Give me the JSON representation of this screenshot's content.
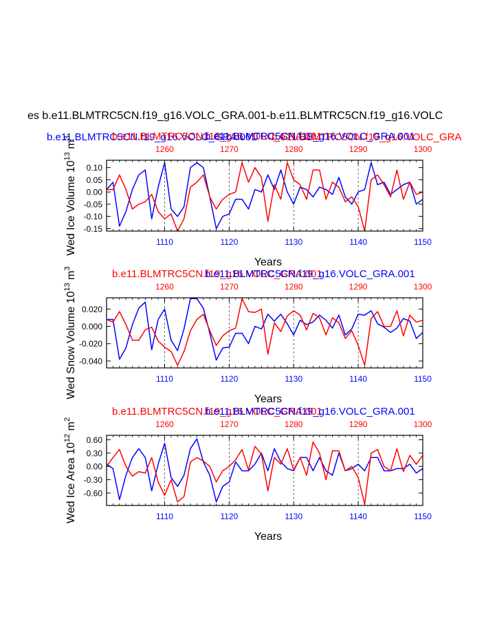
{
  "figure": {
    "main_title": "es b.e11.BLMTRC5CN.f19_g16.VOLC_GRA.001-b.e11.BLMTRC5CN.f19_g16.VOLC",
    "overlap_title_blue": "b.e11.BLMTRC5CN.f19_g16.VOLC_GRA.001",
    "overlap_title_red": "b.e11.BLMTRC5CN.f19_g16.VOLC_GRA",
    "colors": {
      "series_a": "#0000ff",
      "series_b": "#ff0000",
      "axis": "#000000"
    }
  },
  "chart_data": [
    {
      "type": "line",
      "id": "ice-volume",
      "title_red": "b.e11.BLMTRC5CN.f19_g16.VOLC_GRA.001",
      "title_blue": "b.e11.BLMTRC5CN.f19_g16.VOLC_GRA.001",
      "ylabel": "Wed Ice Volume 10",
      "ylabel_exp": "13",
      "ylabel_unit": " m",
      "ylabel_unit_exp": "3",
      "xlabel": "Years",
      "xlim_bottom": [
        1101,
        1150
      ],
      "xlim_top": [
        1251,
        1300
      ],
      "ylim": [
        -0.16,
        0.13
      ],
      "yticks": [
        -0.15,
        -0.1,
        -0.05,
        0.0,
        0.05,
        0.1
      ],
      "ytick_labels": [
        "-0.15",
        "-0.10",
        "-0.05",
        "0.00",
        "0.05",
        "0.10"
      ],
      "xticks_bottom": [
        1110,
        1120,
        1130,
        1140,
        1150
      ],
      "xtick_labels_bottom": [
        "1110",
        "1120",
        "1130",
        "1140",
        "1150"
      ],
      "xticks_top": [
        1260,
        1270,
        1280,
        1290,
        1300
      ],
      "xtick_labels_top": [
        "1260",
        "1270",
        "1280",
        "1290",
        "1300"
      ],
      "x": [
        1101,
        1102,
        1103,
        1104,
        1105,
        1106,
        1107,
        1108,
        1109,
        1110,
        1111,
        1112,
        1113,
        1114,
        1115,
        1116,
        1117,
        1118,
        1119,
        1120,
        1121,
        1122,
        1123,
        1124,
        1125,
        1126,
        1127,
        1128,
        1129,
        1130,
        1131,
        1132,
        1133,
        1134,
        1135,
        1136,
        1137,
        1138,
        1139,
        1140,
        1141,
        1142,
        1143,
        1144,
        1145,
        1146,
        1147,
        1148,
        1149,
        1150
      ],
      "series": [
        {
          "name": "b.e11.BLMTRC5CN.f19_g16.VOLC_GRA.001",
          "color": "#0000ff",
          "axis": "bottom",
          "values": [
            0.01,
            0.04,
            -0.14,
            -0.08,
            0.01,
            0.07,
            0.09,
            -0.11,
            0.02,
            0.12,
            -0.07,
            -0.1,
            -0.06,
            0.1,
            0.12,
            0.1,
            -0.02,
            -0.15,
            -0.1,
            -0.09,
            -0.03,
            -0.03,
            -0.07,
            0.01,
            0.0,
            0.07,
            0.01,
            0.09,
            0.0,
            -0.05,
            0.02,
            0.01,
            -0.02,
            0.02,
            0.01,
            -0.01,
            0.06,
            -0.02,
            -0.05,
            0.0,
            0.01,
            0.12,
            0.03,
            0.04,
            -0.01,
            0.01,
            0.03,
            0.04,
            -0.05,
            -0.03
          ]
        },
        {
          "name": "b.e11.BLMTRC5CN.f19_g16.VOLC_GRA.001",
          "color": "#ff0000",
          "axis": "top",
          "values": [
            0.01,
            0.01,
            0.07,
            0.01,
            -0.07,
            -0.05,
            -0.04,
            -0.01,
            -0.08,
            -0.11,
            -0.09,
            -0.16,
            -0.11,
            0.02,
            0.04,
            0.07,
            -0.02,
            -0.07,
            -0.03,
            -0.01,
            0.0,
            0.12,
            0.04,
            0.1,
            0.06,
            -0.12,
            0.03,
            -0.03,
            0.12,
            0.05,
            0.03,
            -0.03,
            0.09,
            0.09,
            -0.03,
            0.04,
            0.02,
            -0.04,
            -0.02,
            -0.06,
            -0.16,
            0.05,
            0.07,
            0.03,
            -0.02,
            0.09,
            -0.03,
            0.04,
            -0.01,
            0.0
          ]
        }
      ]
    },
    {
      "type": "line",
      "id": "snow-volume",
      "title_red": "b.e11.BLMTRC5CN.f19_g16.VOLC_GRA.001",
      "title_blue": "b.e11.BLMTRC5CN.f19_g16.VOLC_GRA.001",
      "ylabel": "Wed Snow Volume 10",
      "ylabel_exp": "13",
      "ylabel_unit": " m",
      "ylabel_unit_exp": "3",
      "xlabel": "Years",
      "xlim_bottom": [
        1101,
        1150
      ],
      "xlim_top": [
        1251,
        1300
      ],
      "ylim": [
        -0.048,
        0.033
      ],
      "yticks": [
        -0.04,
        -0.02,
        0.0,
        0.02
      ],
      "ytick_labels": [
        "-0.040",
        "-0.020",
        "0.000",
        "0.020"
      ],
      "xticks_bottom": [
        1110,
        1120,
        1130,
        1140,
        1150
      ],
      "xtick_labels_bottom": [
        "1110",
        "1120",
        "1130",
        "1140",
        "1150"
      ],
      "xticks_top": [
        1260,
        1270,
        1280,
        1290,
        1300
      ],
      "xtick_labels_top": [
        "1260",
        "1270",
        "1280",
        "1290",
        "1300"
      ],
      "x": [
        1101,
        1102,
        1103,
        1104,
        1105,
        1106,
        1107,
        1108,
        1109,
        1110,
        1111,
        1112,
        1113,
        1114,
        1115,
        1116,
        1117,
        1118,
        1119,
        1120,
        1121,
        1122,
        1123,
        1124,
        1125,
        1126,
        1127,
        1128,
        1129,
        1130,
        1131,
        1132,
        1133,
        1134,
        1135,
        1136,
        1137,
        1138,
        1139,
        1140,
        1141,
        1142,
        1143,
        1144,
        1145,
        1146,
        1147,
        1148,
        1149,
        1150
      ],
      "series": [
        {
          "name": "b.e11.BLMTRC5CN.f19_g16.VOLC_GRA.001",
          "color": "#0000ff",
          "axis": "bottom",
          "values": [
            0.008,
            0.008,
            -0.038,
            -0.025,
            0.002,
            0.021,
            0.028,
            -0.027,
            0.008,
            0.02,
            -0.016,
            -0.028,
            -0.003,
            0.032,
            0.032,
            0.021,
            -0.008,
            -0.039,
            -0.025,
            -0.024,
            -0.008,
            -0.008,
            -0.02,
            0.0,
            -0.003,
            0.014,
            0.006,
            0.014,
            0.003,
            -0.01,
            0.007,
            0.002,
            0.005,
            0.013,
            0.007,
            -0.002,
            0.013,
            -0.01,
            -0.003,
            0.014,
            0.013,
            0.018,
            0.003,
            -0.001,
            -0.007,
            -0.002,
            0.009,
            0.006,
            -0.014,
            -0.007
          ]
        },
        {
          "name": "b.e11.BLMTRC5CN.f19_g16.VOLC_GRA.001",
          "color": "#ff0000",
          "axis": "top",
          "values": [
            0.008,
            0.005,
            0.017,
            0.002,
            -0.016,
            -0.016,
            -0.004,
            -0.001,
            -0.017,
            -0.024,
            -0.029,
            -0.045,
            -0.029,
            -0.005,
            0.008,
            0.014,
            -0.005,
            -0.022,
            -0.011,
            -0.005,
            -0.002,
            0.032,
            0.017,
            0.016,
            0.02,
            -0.032,
            0.004,
            -0.006,
            0.012,
            0.018,
            0.013,
            -0.004,
            0.015,
            0.01,
            -0.01,
            0.01,
            0.004,
            -0.014,
            -0.005,
            -0.022,
            -0.045,
            0.009,
            0.017,
            0.0,
            0.0,
            0.018,
            -0.011,
            0.013,
            0.005,
            0.007
          ]
        }
      ]
    },
    {
      "type": "line",
      "id": "ice-area",
      "title_red": "b.e11.BLMTRC5CN.f19_g16.VOLC_GRA.001",
      "title_blue": "b.e11.BLMTRC5CN.f19_g16.VOLC_GRA.001",
      "ylabel": "Wed Ice Area 10",
      "ylabel_exp": "12",
      "ylabel_unit": " m",
      "ylabel_unit_exp": "2",
      "xlabel": "Years",
      "xlim_bottom": [
        1101,
        1150
      ],
      "xlim_top": [
        1251,
        1300
      ],
      "ylim": [
        -0.88,
        0.7
      ],
      "yticks": [
        -0.6,
        -0.3,
        0.0,
        0.3,
        0.6
      ],
      "ytick_labels": [
        "-0.60",
        "-0.30",
        "0.00",
        "0.30",
        "0.60"
      ],
      "xticks_bottom": [
        1110,
        1120,
        1130,
        1140,
        1150
      ],
      "xtick_labels_bottom": [
        "1110",
        "1120",
        "1130",
        "1140",
        "1150"
      ],
      "xticks_top": [
        1260,
        1270,
        1280,
        1290,
        1300
      ],
      "xtick_labels_top": [
        "1260",
        "1270",
        "1280",
        "1290",
        "1300"
      ],
      "x": [
        1101,
        1102,
        1103,
        1104,
        1105,
        1106,
        1107,
        1108,
        1109,
        1110,
        1111,
        1112,
        1113,
        1114,
        1115,
        1116,
        1117,
        1118,
        1119,
        1120,
        1121,
        1122,
        1123,
        1124,
        1125,
        1126,
        1127,
        1128,
        1129,
        1130,
        1131,
        1132,
        1133,
        1134,
        1135,
        1136,
        1137,
        1138,
        1139,
        1140,
        1141,
        1142,
        1143,
        1144,
        1145,
        1146,
        1147,
        1148,
        1149,
        1150
      ],
      "series": [
        {
          "name": "b.e11.BLMTRC5CN.f19_g16.VOLC_GRA.001",
          "color": "#0000ff",
          "axis": "bottom",
          "values": [
            0.05,
            -0.05,
            -0.75,
            -0.2,
            0.2,
            0.4,
            0.2,
            -0.55,
            0.05,
            0.52,
            -0.25,
            -0.45,
            -0.2,
            0.4,
            0.62,
            0.1,
            -0.2,
            -0.8,
            -0.45,
            -0.35,
            0.1,
            -0.1,
            -0.1,
            0.05,
            0.3,
            -0.1,
            0.4,
            0.1,
            -0.05,
            -0.1,
            0.2,
            0.2,
            -0.1,
            0.2,
            -0.1,
            -0.2,
            0.3,
            -0.1,
            -0.05,
            0.05,
            -0.1,
            0.2,
            0.2,
            -0.1,
            -0.1,
            -0.05,
            -0.05,
            0.05,
            -0.15,
            -0.05
          ]
        },
        {
          "name": "b.e11.BLMTRC5CN.f19_g16.VOLC_GRA.001",
          "color": "#ff0000",
          "axis": "top",
          "values": [
            0.0,
            0.2,
            0.38,
            0.0,
            -0.22,
            -0.12,
            -0.15,
            0.2,
            -0.35,
            -0.65,
            -0.3,
            -0.8,
            -0.68,
            0.1,
            0.2,
            0.12,
            0.0,
            -0.35,
            -0.1,
            0.0,
            0.15,
            0.38,
            -0.08,
            0.45,
            0.28,
            -0.55,
            0.2,
            0.05,
            0.4,
            -0.08,
            0.2,
            -0.2,
            0.55,
            0.3,
            -0.3,
            0.35,
            0.35,
            -0.1,
            0.0,
            -0.25,
            -0.85,
            0.3,
            0.38,
            0.0,
            -0.1,
            0.4,
            -0.12,
            0.25,
            0.05,
            0.25
          ]
        }
      ]
    }
  ]
}
